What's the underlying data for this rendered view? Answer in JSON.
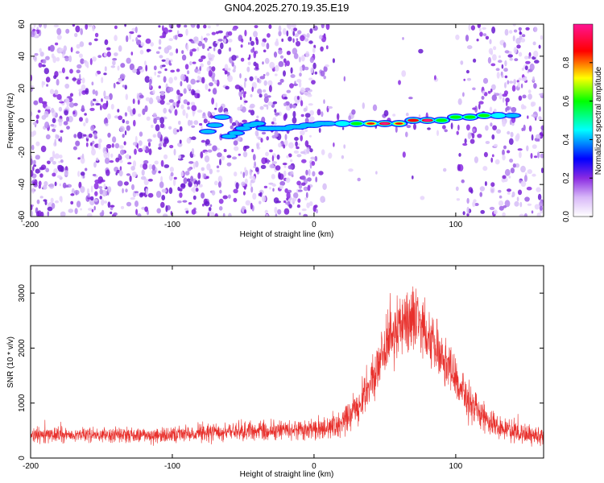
{
  "title": "GN04.2025.270.19.35.E19",
  "chart_data": [
    {
      "type": "heatmap",
      "xlabel": "Height of straight line (km)",
      "ylabel": "Frequency (Hz)",
      "xlim": [
        -200,
        162
      ],
      "ylim": [
        -60,
        60
      ],
      "xticks": [
        -200,
        -100,
        0,
        100
      ],
      "yticks": [
        -60,
        -40,
        -20,
        0,
        20,
        40,
        60
      ],
      "colorbar": {
        "label": "Normalized spectral amplitude",
        "range": [
          0,
          1
        ],
        "ticks": [
          0.0,
          0.2,
          0.4,
          0.6,
          0.8
        ],
        "colors": [
          "#ffffff",
          "#8a2be2",
          "#0000ff",
          "#00ffff",
          "#00ff00",
          "#ffff00",
          "#ff0000",
          "#ff1493"
        ]
      },
      "signal_track": {
        "x": [
          -75,
          -70,
          -65,
          -60,
          -55,
          -50,
          -45,
          -40,
          -35,
          -30,
          -25,
          -20,
          -15,
          -10,
          -5,
          0,
          5,
          10,
          20,
          30,
          40,
          50,
          60,
          70,
          80,
          90,
          100,
          110,
          120,
          130,
          140
        ],
        "y": [
          -7,
          -3,
          2,
          -10,
          -8,
          -5,
          -3,
          -2,
          -5,
          -5,
          -5,
          -5,
          -4,
          -4,
          -3,
          -3,
          -2,
          -2,
          -2,
          -2,
          -2,
          -2,
          -2,
          0,
          0,
          0,
          2,
          2,
          3,
          3,
          3
        ],
        "amplitude": [
          0.25,
          0.25,
          0.2,
          0.2,
          0.15,
          0.15,
          0.15,
          0.15,
          0.25,
          0.25,
          0.25,
          0.25,
          0.15,
          0.15,
          0.15,
          0.15,
          0.3,
          0.35,
          0.5,
          0.6,
          0.8,
          0.9,
          0.8,
          0.85,
          0.95,
          0.7,
          0.55,
          0.6,
          0.55,
          0.45,
          0.3
        ]
      }
    },
    {
      "type": "line",
      "xlabel": "Height of straight line (km)",
      "ylabel": "SNR (10 * v/v)",
      "xlim": [
        -200,
        162
      ],
      "ylim": [
        0,
        3500
      ],
      "xticks": [
        -200,
        -100,
        0,
        100
      ],
      "yticks": [
        0,
        1000,
        2000,
        3000
      ],
      "color": "#e8302c",
      "series": [
        {
          "name": "SNR",
          "x": [
            -200,
            -180,
            -160,
            -140,
            -120,
            -100,
            -80,
            -60,
            -40,
            -20,
            0,
            10,
            20,
            30,
            40,
            50,
            60,
            70,
            80,
            90,
            100,
            110,
            120,
            130,
            140,
            150,
            162
          ],
          "mean": [
            420,
            420,
            420,
            420,
            410,
            420,
            460,
            480,
            500,
            510,
            520,
            550,
            650,
            900,
            1400,
            2000,
            2350,
            2500,
            2300,
            1850,
            1400,
            1000,
            750,
            580,
            480,
            420,
            400
          ],
          "spread": [
            130,
            130,
            130,
            130,
            130,
            130,
            150,
            150,
            160,
            160,
            170,
            180,
            220,
            300,
            380,
            480,
            520,
            560,
            500,
            450,
            380,
            320,
            260,
            220,
            180,
            160,
            150
          ]
        }
      ]
    }
  ]
}
